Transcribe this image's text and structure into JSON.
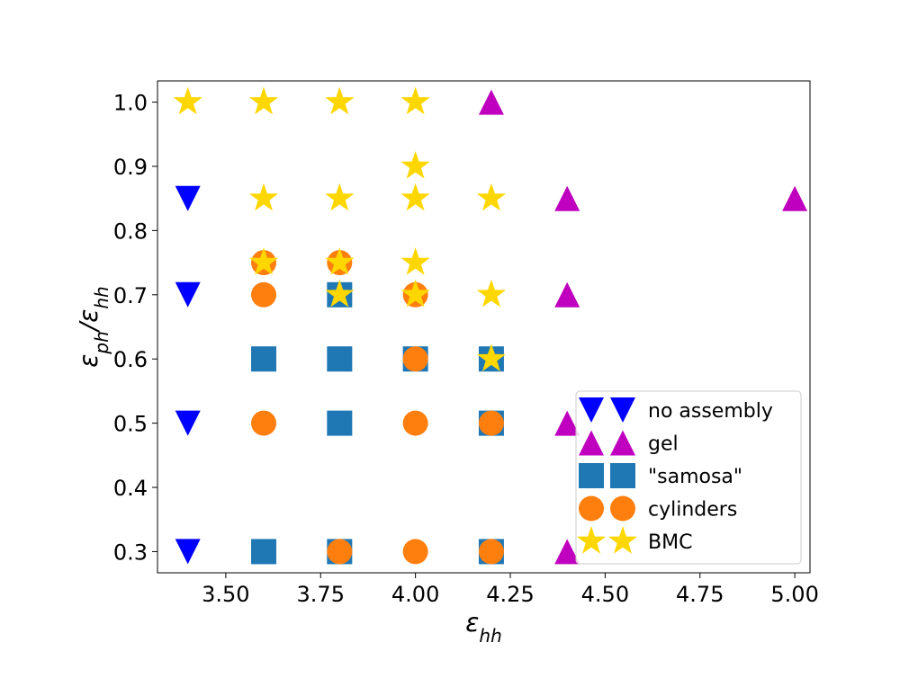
{
  "chart_data": {
    "type": "scatter",
    "xlabel": "ε_hh",
    "ylabel": "ε_ph/ε_hh",
    "xlim": [
      3.32,
      5.04
    ],
    "ylim": [
      0.267,
      1.033
    ],
    "x_ticks": [
      "3.50",
      "3.75",
      "4.00",
      "4.25",
      "4.50",
      "4.75",
      "5.00"
    ],
    "y_ticks": [
      "0.3",
      "0.4",
      "0.5",
      "0.6",
      "0.7",
      "0.8",
      "0.9",
      "1.0"
    ],
    "grid": false,
    "legend_position": "lower-right",
    "series": [
      {
        "name": "no assembly",
        "marker": "triangle-down",
        "color": "#0000ff",
        "points": [
          [
            3.4,
            0.85
          ],
          [
            3.4,
            0.7
          ],
          [
            3.4,
            0.5
          ],
          [
            3.4,
            0.3
          ]
        ]
      },
      {
        "name": "gel",
        "marker": "triangle-up",
        "color": "#bf00bf",
        "points": [
          [
            4.2,
            1.0
          ],
          [
            4.4,
            0.85
          ],
          [
            5.0,
            0.85
          ],
          [
            4.4,
            0.7
          ],
          [
            4.4,
            0.5
          ],
          [
            4.4,
            0.3
          ]
        ]
      },
      {
        "name": "\"samosa\"",
        "marker": "square",
        "color": "#1f77b4",
        "points": [
          [
            3.8,
            0.7
          ],
          [
            3.6,
            0.6
          ],
          [
            3.8,
            0.6
          ],
          [
            4.0,
            0.6
          ],
          [
            4.2,
            0.6
          ],
          [
            3.8,
            0.5
          ],
          [
            4.2,
            0.5
          ],
          [
            3.6,
            0.3
          ],
          [
            3.8,
            0.3
          ],
          [
            4.2,
            0.3
          ]
        ]
      },
      {
        "name": "cylinders",
        "marker": "circle",
        "color": "#ff7f0e",
        "points": [
          [
            3.6,
            0.75
          ],
          [
            3.8,
            0.75
          ],
          [
            3.6,
            0.7
          ],
          [
            4.0,
            0.7
          ],
          [
            4.0,
            0.6
          ],
          [
            3.6,
            0.5
          ],
          [
            4.0,
            0.5
          ],
          [
            4.2,
            0.5
          ],
          [
            3.8,
            0.3
          ],
          [
            4.0,
            0.3
          ],
          [
            4.2,
            0.3
          ]
        ]
      },
      {
        "name": "BMC",
        "marker": "star",
        "color": "#ffd700",
        "points": [
          [
            3.4,
            1.0
          ],
          [
            3.6,
            1.0
          ],
          [
            3.8,
            1.0
          ],
          [
            4.0,
            1.0
          ],
          [
            4.0,
            0.9
          ],
          [
            3.6,
            0.85
          ],
          [
            3.8,
            0.85
          ],
          [
            4.0,
            0.85
          ],
          [
            4.2,
            0.85
          ],
          [
            3.6,
            0.75
          ],
          [
            3.8,
            0.75
          ],
          [
            4.0,
            0.75
          ],
          [
            3.8,
            0.7
          ],
          [
            4.0,
            0.7
          ],
          [
            4.2,
            0.7
          ],
          [
            4.2,
            0.6
          ]
        ]
      }
    ]
  }
}
